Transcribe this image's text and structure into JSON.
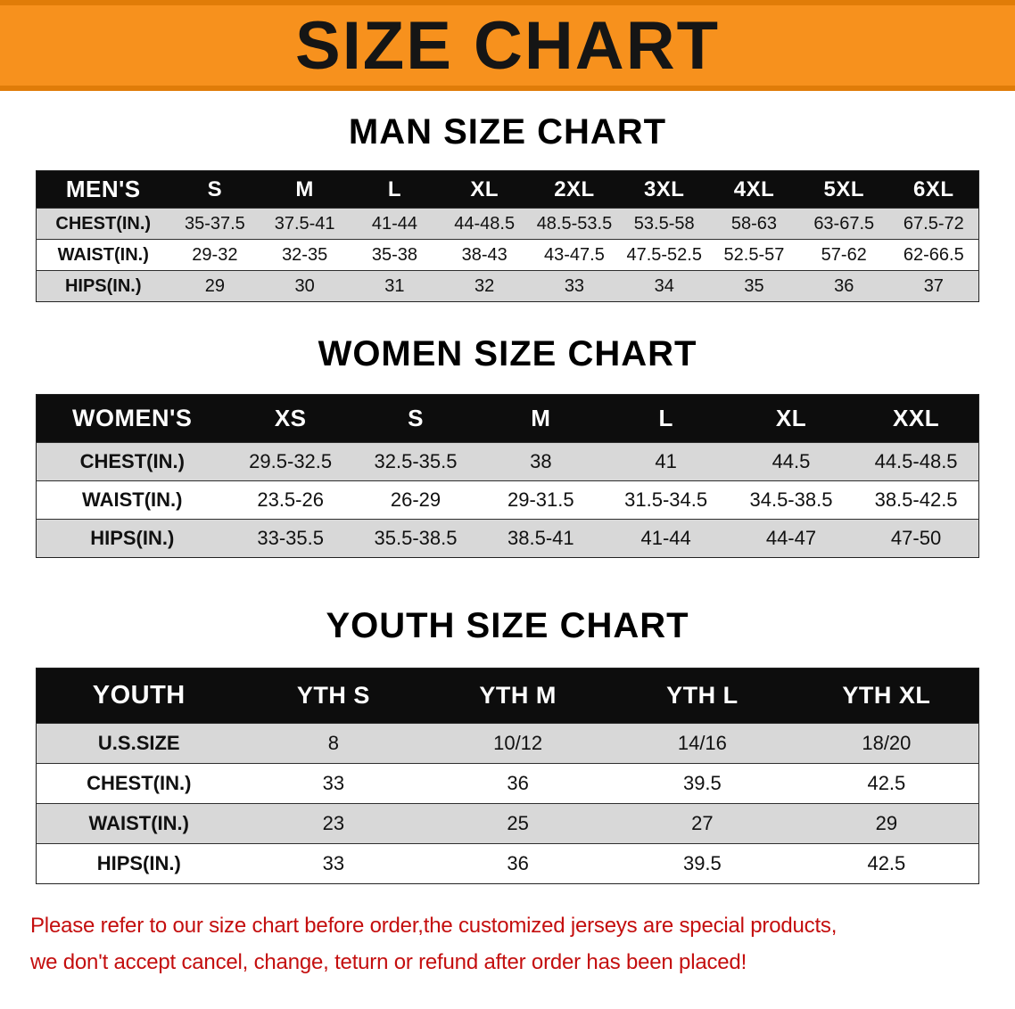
{
  "banner": {
    "title": "SIZE CHART"
  },
  "colors": {
    "banner_bg": "#F7911D",
    "banner_edge": "#E07C08",
    "header_bg": "#0D0D0D",
    "header_text": "#FFFFFF",
    "row_shade": "#D8D8D8",
    "notice_color": "#C40E0E"
  },
  "chart_data": [
    {
      "type": "table",
      "title": "MAN SIZE CHART",
      "header": [
        "MEN'S",
        "S",
        "M",
        "L",
        "XL",
        "2XL",
        "3XL",
        "4XL",
        "5XL",
        "6XL"
      ],
      "rows": [
        [
          "CHEST(IN.)",
          "35-37.5",
          "37.5-41",
          "41-44",
          "44-48.5",
          "48.5-53.5",
          "53.5-58",
          "58-63",
          "63-67.5",
          "67.5-72"
        ],
        [
          "WAIST(IN.)",
          "29-32",
          "32-35",
          "35-38",
          "38-43",
          "43-47.5",
          "47.5-52.5",
          "52.5-57",
          "57-62",
          "62-66.5"
        ],
        [
          "HIPS(IN.)",
          "29",
          "30",
          "31",
          "32",
          "33",
          "34",
          "35",
          "36",
          "37"
        ]
      ]
    },
    {
      "type": "table",
      "title": "WOMEN SIZE CHART",
      "header": [
        "WOMEN'S",
        "XS",
        "S",
        "M",
        "L",
        "XL",
        "XXL"
      ],
      "rows": [
        [
          "CHEST(IN.)",
          "29.5-32.5",
          "32.5-35.5",
          "38",
          "41",
          "44.5",
          "44.5-48.5"
        ],
        [
          "WAIST(IN.)",
          "23.5-26",
          "26-29",
          "29-31.5",
          "31.5-34.5",
          "34.5-38.5",
          "38.5-42.5"
        ],
        [
          "HIPS(IN.)",
          "33-35.5",
          "35.5-38.5",
          "38.5-41",
          "41-44",
          "44-47",
          "47-50"
        ]
      ]
    },
    {
      "type": "table",
      "title": "YOUTH SIZE CHART",
      "header": [
        "YOUTH",
        "YTH S",
        "YTH M",
        "YTH L",
        "YTH XL"
      ],
      "rows": [
        [
          "U.S.SIZE",
          "8",
          "10/12",
          "14/16",
          "18/20"
        ],
        [
          "CHEST(IN.)",
          "33",
          "36",
          "39.5",
          "42.5"
        ],
        [
          "WAIST(IN.)",
          "23",
          "25",
          "27",
          "29"
        ],
        [
          "HIPS(IN.)",
          "33",
          "36",
          "39.5",
          "42.5"
        ]
      ]
    }
  ],
  "footer": {
    "line1": "Please refer to our size chart before order,the customized jerseys are special products,",
    "line2": "we don't accept cancel, change, teturn or refund after order has been placed!"
  }
}
